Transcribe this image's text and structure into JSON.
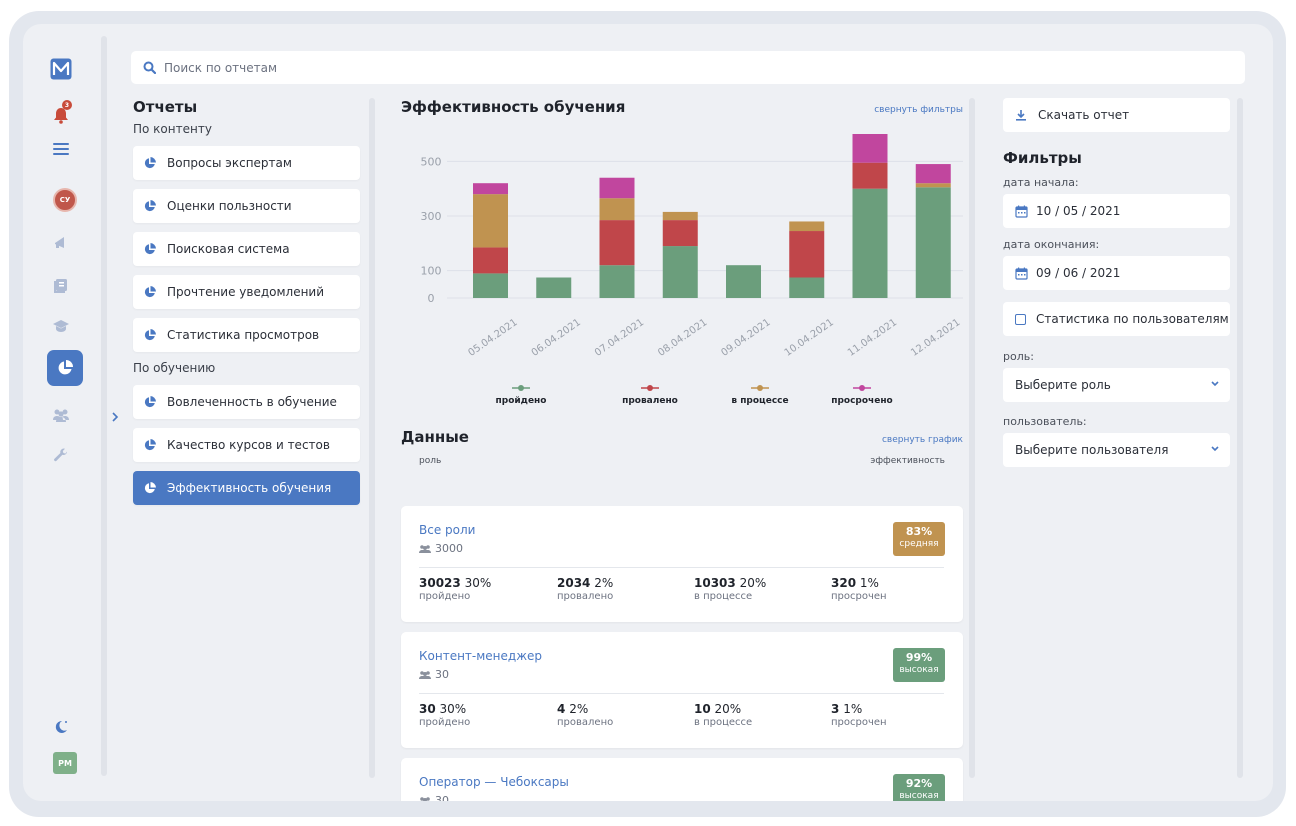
{
  "search": {
    "placeholder": "Поиск по отчетам"
  },
  "rail": {
    "notifications_count": "3",
    "user_initials": "СУ",
    "profile_initials": "PM"
  },
  "reports": {
    "title": "Отчеты",
    "content_section": "По контенту",
    "content_items": [
      "Вопросы экспертам",
      "Оценки пользности",
      "Поисковая система",
      "Прочтение уведомлений",
      "Статистика просмотров"
    ],
    "learning_section": "По обучению",
    "learning_items": [
      "Вовлеченность в обучение",
      "Качество курсов и тестов",
      "Эффективность обучения"
    ]
  },
  "main": {
    "title": "Эффективность обучения",
    "collapse_filters": "свернуть фильтры",
    "data_title": "Данные",
    "collapse_chart": "свернуть график",
    "col_role": "роль",
    "col_efficiency": "эффективность"
  },
  "chart_data": {
    "type": "bar",
    "stacked": true,
    "categories": [
      "05.04.2021",
      "06.04.2021",
      "07.04.2021",
      "08.04.2021",
      "09.04.2021",
      "10.04.2021",
      "11.04.2021",
      "12.04.2021"
    ],
    "y_ticks": [
      "500",
      "300",
      "100",
      "0"
    ],
    "ylim": [
      0,
      600
    ],
    "series": [
      {
        "name": "пройдено",
        "color": "#6b9e7c",
        "values": [
          90,
          75,
          120,
          190,
          120,
          75,
          400,
          405
        ]
      },
      {
        "name": "провалено",
        "color": "#c0464a",
        "values": [
          95,
          0,
          165,
          95,
          0,
          170,
          95,
          0
        ]
      },
      {
        "name": "в процессе",
        "color": "#c09350",
        "values": [
          195,
          0,
          80,
          30,
          0,
          35,
          0,
          15
        ]
      },
      {
        "name": "просрочено",
        "color": "#c1469e",
        "values": [
          40,
          0,
          75,
          0,
          0,
          0,
          105,
          70
        ]
      }
    ],
    "grid": true,
    "legend": "bottom"
  },
  "cards": [
    {
      "role": "Все роли",
      "users": "3000",
      "badge_value": "83%",
      "badge_label": "средняя",
      "badge_color": "#c09350",
      "stats": [
        {
          "value": "30023",
          "pct": "30%",
          "label": "пройдено"
        },
        {
          "value": "2034",
          "pct": "2%",
          "label": "провалено"
        },
        {
          "value": "10303",
          "pct": "20%",
          "label": "в процессе"
        },
        {
          "value": "320",
          "pct": "1%",
          "label": "просрочен"
        }
      ]
    },
    {
      "role": "Контент-менеджер",
      "users": "30",
      "badge_value": "99%",
      "badge_label": "высокая",
      "badge_color": "#6b9e7c",
      "stats": [
        {
          "value": "30",
          "pct": "30%",
          "label": "пройдено"
        },
        {
          "value": "4",
          "pct": "2%",
          "label": "провалено"
        },
        {
          "value": "10",
          "pct": "20%",
          "label": "в процессе"
        },
        {
          "value": "3",
          "pct": "1%",
          "label": "просрочен"
        }
      ]
    },
    {
      "role": "Оператор — Чебоксары",
      "users": "30",
      "badge_value": "92%",
      "badge_label": "высокая",
      "badge_color": "#6b9e7c",
      "stats": []
    }
  ],
  "filters": {
    "download": "Скачать отчет",
    "title": "Фильтры",
    "start_label": "дата начала:",
    "start_value": "10 / 05 / 2021",
    "end_label": "дата окончания:",
    "end_value": "09 / 06 / 2021",
    "user_stats": "Статистика по пользователям",
    "role_label": "роль:",
    "role_placeholder": "Выберите роль",
    "user_label": "пользователь:",
    "user_placeholder": "Выберите пользователя"
  }
}
